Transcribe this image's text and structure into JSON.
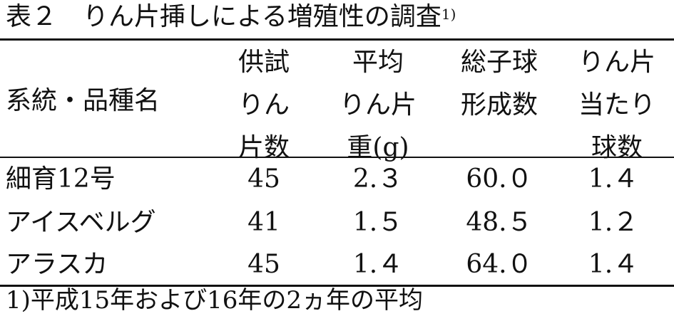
{
  "title": {
    "text": "表２　りん片挿しによる増殖性の調査",
    "note_ref": "1)"
  },
  "table": {
    "headers": [
      {
        "lines": [
          "系統・品種名"
        ]
      },
      {
        "lines": [
          "供試",
          "りん",
          "片数"
        ]
      },
      {
        "lines": [
          "平均",
          "りん片",
          "重(g)"
        ]
      },
      {
        "lines": [
          "総子球",
          "形成数"
        ]
      },
      {
        "lines": [
          "りん片",
          "当たり",
          "球数"
        ]
      }
    ],
    "rows": [
      [
        "細育12号",
        "45",
        "2.３",
        "60.０",
        "1.４"
      ],
      [
        "アイスベルグ",
        "41",
        "1.５",
        "48.５",
        "1.２"
      ],
      [
        "アラスカ",
        "45",
        "1.４",
        "64.０",
        "1.４"
      ]
    ]
  },
  "footnote": "1)平成15年および16年の2ヵ年の平均"
}
